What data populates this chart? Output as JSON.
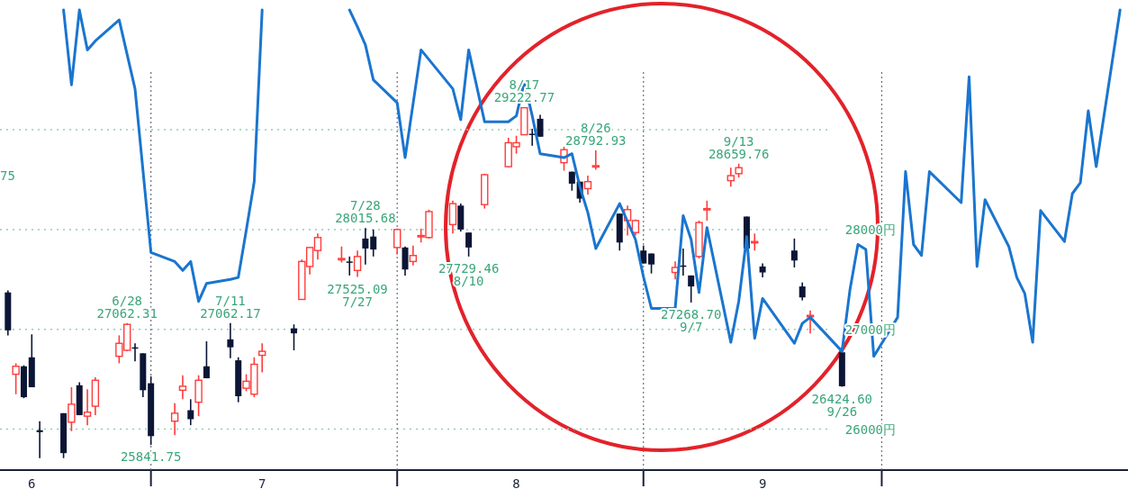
{
  "chart_data": {
    "type": "candlestick",
    "grid": true,
    "xlim": [
      "--06-12",
      "--11-01"
    ],
    "ylim": [
      25590,
      30300
    ],
    "yticks": [
      {
        "value": 26000,
        "label": "26000円"
      },
      {
        "value": 27000,
        "label": "27000円"
      },
      {
        "value": 28000,
        "label": "28000円"
      },
      {
        "value": 29000,
        "label": null
      }
    ],
    "xticks": [
      {
        "value": "--06-16",
        "label": "6"
      },
      {
        "value": "--07-01",
        "label": null
      },
      {
        "value": "--07-15",
        "label": "7"
      },
      {
        "value": "--08-01",
        "label": null
      },
      {
        "value": "--08-16",
        "label": "8"
      },
      {
        "value": "--09-01",
        "label": null
      },
      {
        "value": "--09-16",
        "label": "9"
      },
      {
        "value": "--10-01",
        "label": null
      }
    ],
    "x": [
      "--06-13",
      "--06-14",
      "--06-15",
      "--06-16",
      "--06-17",
      "--06-20",
      "--06-21",
      "--06-22",
      "--06-23",
      "--06-24",
      "--06-27",
      "--06-28",
      "--06-29",
      "--06-30",
      "--07-01",
      "--07-04",
      "--07-05",
      "--07-06",
      "--07-07",
      "--07-08",
      "--07-11",
      "--07-12",
      "--07-13",
      "--07-14",
      "--07-15",
      "--07-19",
      "--07-20",
      "--07-21",
      "--07-22",
      "--07-25",
      "--07-26",
      "--07-27",
      "--07-28",
      "--07-29",
      "--08-01",
      "--08-02",
      "--08-03",
      "--08-04",
      "--08-05",
      "--08-08",
      "--08-09",
      "--08-10",
      "--08-12",
      "--08-15",
      "--08-16",
      "--08-17",
      "--08-18",
      "--08-19",
      "--08-22",
      "--08-23",
      "--08-24",
      "--08-25",
      "--08-26",
      "--08-29",
      "--08-30",
      "--08-31",
      "--09-01",
      "--09-02",
      "--09-05",
      "--09-06",
      "--09-07",
      "--09-08",
      "--09-09",
      "--09-12",
      "--09-13",
      "--09-14",
      "--09-15",
      "--09-16",
      "--09-20",
      "--09-21",
      "--09-22",
      "--09-26"
    ],
    "ohlc": [
      [
        27370,
        27390,
        26940,
        26990
      ],
      [
        26550,
        26660,
        26350,
        26630
      ],
      [
        26630,
        26640,
        26310,
        26320
      ],
      [
        26720,
        26950,
        26420,
        26420
      ],
      [
        25990,
        26080,
        25710,
        25970
      ],
      [
        26160,
        26160,
        25710,
        25760
      ],
      [
        26070,
        26420,
        25980,
        26250
      ],
      [
        26440,
        26470,
        26140,
        26140
      ],
      [
        26130,
        26400,
        26040,
        26170
      ],
      [
        26230,
        26520,
        26140,
        26490
      ],
      [
        26730,
        26940,
        26660,
        26860
      ],
      [
        26790,
        27062.31,
        26780,
        27050
      ],
      [
        26820,
        26860,
        26680,
        26810
      ],
      [
        26760,
        26760,
        26320,
        26390
      ],
      [
        26460,
        26530,
        25841.75,
        25930
      ],
      [
        26080,
        26260,
        25940,
        26160
      ],
      [
        26390,
        26540,
        26300,
        26430
      ],
      [
        26190,
        26300,
        26040,
        26100
      ],
      [
        26270,
        26540,
        26130,
        26490
      ],
      [
        26630,
        26880,
        26510,
        26510
      ],
      [
        26900,
        27062.17,
        26710,
        26820
      ],
      [
        26690,
        26720,
        26270,
        26330
      ],
      [
        26410,
        26550,
        26380,
        26480
      ],
      [
        26350,
        26720,
        26320,
        26650
      ],
      [
        26740,
        26860,
        26570,
        26780
      ],
      [
        27010,
        27050,
        26790,
        26960
      ],
      [
        27300,
        27700,
        27300,
        27680
      ],
      [
        27630,
        27820,
        27550,
        27820
      ],
      [
        27790,
        27960,
        27700,
        27920
      ],
      [
        27700,
        27830,
        27670,
        27710
      ],
      [
        27680,
        27730,
        27540,
        27670
      ],
      [
        27590,
        27790,
        27525.09,
        27730
      ],
      [
        27910,
        28015.68,
        27650,
        27810
      ],
      [
        27930,
        28000,
        27730,
        27800
      ],
      [
        27820,
        28010,
        27750,
        28000
      ],
      [
        27820,
        27830,
        27540,
        27600
      ],
      [
        27680,
        27840,
        27640,
        27740
      ],
      [
        27930,
        28010,
        27870,
        27940
      ],
      [
        27920,
        28200,
        27910,
        28180
      ],
      [
        28050,
        28290,
        27960,
        28260
      ],
      [
        28240,
        28260,
        27980,
        28000
      ],
      [
        27970,
        27970,
        27729.46,
        27820
      ],
      [
        28250,
        28560,
        28210,
        28550
      ],
      [
        28630,
        28920,
        28620,
        28870
      ],
      [
        28830,
        28940,
        28760,
        28870
      ],
      [
        28950,
        29222.77,
        28950,
        29220
      ],
      [
        28960,
        29010,
        28840,
        28950
      ],
      [
        29110,
        29150,
        28930,
        28930
      ],
      [
        28670,
        28830,
        28590,
        28800
      ],
      [
        28580,
        28580,
        28390,
        28460
      ],
      [
        28480,
        28480,
        28270,
        28310
      ],
      [
        28410,
        28540,
        28350,
        28480
      ],
      [
        28630,
        28792.93,
        28600,
        28640
      ],
      [
        28160,
        28160,
        27790,
        27870
      ],
      [
        28090,
        28240,
        27940,
        28200
      ],
      [
        27970,
        28100,
        27940,
        28090
      ],
      [
        27790,
        27840,
        27660,
        27660
      ],
      [
        27760,
        27760,
        27560,
        27650
      ],
      [
        27570,
        27680,
        27500,
        27620
      ],
      [
        27640,
        27810,
        27540,
        27630
      ],
      [
        27540,
        27540,
        27268.7,
        27430
      ],
      [
        27730,
        28090,
        27710,
        28070
      ],
      [
        28200,
        28290,
        28090,
        28210
      ],
      [
        28490,
        28620,
        28430,
        28540
      ],
      [
        28560,
        28659.76,
        28520,
        28620
      ],
      [
        28130,
        28130,
        27810,
        27810
      ],
      [
        27870,
        27960,
        27790,
        27880
      ],
      [
        27630,
        27660,
        27520,
        27570
      ],
      [
        27790,
        27910,
        27620,
        27690
      ],
      [
        27430,
        27470,
        27290,
        27320
      ],
      [
        27130,
        27190,
        26960,
        27140
      ],
      [
        26770,
        26770,
        26424.6,
        26430
      ]
    ],
    "series": [
      {
        "type": "line",
        "color": "#1a75cf",
        "x": [
          "--06-20",
          "--06-21",
          "--06-22",
          "--06-23",
          "--06-24",
          "--06-27",
          "--06-29",
          "--07-01",
          "--07-04",
          "--07-05",
          "--07-06",
          "--07-07",
          "--07-08",
          "--07-11",
          "--07-12",
          "--07-13",
          "--07-14",
          "--07-15",
          "--07-21",
          "--07-26",
          "--07-27",
          "--07-28",
          "--07-29",
          "--08-01",
          "--08-02",
          "--08-04",
          "--08-08",
          "--08-09",
          "--08-10",
          "--08-12",
          "--08-15",
          "--08-16",
          "--08-17",
          "--08-18",
          "--08-19",
          "--08-22",
          "--08-23",
          "--08-24",
          "--08-25",
          "--08-26",
          "--08-29",
          "--08-30",
          "--08-31",
          "--09-01",
          "--09-02",
          "--09-05",
          "--09-06",
          "--09-07",
          "--09-08",
          "--09-09",
          "--09-12",
          "--09-13",
          "--09-14",
          "--09-15",
          "--09-16",
          "--09-20",
          "--09-21",
          "--09-22",
          "--09-26",
          "--09-27",
          "--09-28",
          "--09-29",
          "--09-30",
          "--10-03",
          "--10-04",
          "--10-05",
          "--10-06",
          "--10-07",
          "--10-11",
          "--10-12",
          "--10-13",
          "--10-14",
          "--10-17",
          "--10-18",
          "--10-19",
          "--10-20",
          "--10-21",
          "--10-24",
          "--10-25",
          "--10-26",
          "--10-27",
          "--10-28",
          "--10-31"
        ],
        "values": [
          30200,
          29450,
          30200,
          29800,
          29890,
          30100,
          29410,
          27770,
          27680,
          27590,
          27680,
          27280,
          27460,
          27500,
          27520,
          27990,
          28480,
          30200,
          null,
          30200,
          30030,
          29850,
          29500,
          29270,
          28720,
          29800,
          29410,
          29100,
          29800,
          29080,
          29080,
          29140,
          29480,
          29140,
          28760,
          28720,
          28760,
          28430,
          28170,
          27810,
          28260,
          28080,
          27900,
          27530,
          27210,
          27210,
          28140,
          27900,
          27370,
          28020,
          26870,
          27280,
          27930,
          26910,
          27310,
          26860,
          27060,
          27120,
          26780,
          27400,
          27850,
          27800,
          26730,
          27120,
          28580,
          27850,
          27740,
          28580,
          28270,
          29530,
          27630,
          28300,
          27830,
          27520,
          27360,
          26870,
          28190,
          27880,
          28360,
          28470,
          29190,
          28630,
          30200
        ]
      }
    ],
    "annotations": [
      {
        "text": "6/28\n27062.31",
        "x": "--06-28",
        "y": 27062.31
      },
      {
        "text": "25841.75",
        "x": "--07-01",
        "y": 25841.75
      },
      {
        "text": "7/11\n27062.17",
        "x": "--07-11",
        "y": 27062.17
      },
      {
        "text": "27525.09\n7/27",
        "x": "--07-27",
        "y": 27525.09
      },
      {
        "text": "7/28\n28015.68",
        "x": "--07-28",
        "y": 28015.68
      },
      {
        "text": "27729.46\n8/10",
        "x": "--08-10",
        "y": 27729.46
      },
      {
        "text": "8/17\n29222.77",
        "x": "--08-17",
        "y": 29222.77
      },
      {
        "text": "8/26\n28792.93",
        "x": "--08-26",
        "y": 28792.93
      },
      {
        "text": "27268.70\n9/7",
        "x": "--09-07",
        "y": 27268.7
      },
      {
        "text": "9/13\n28659.76",
        "x": "--09-13",
        "y": 28659.76
      },
      {
        "text": "26424.60\n9/26",
        "x": "--09-26",
        "y": 26424.6
      },
      "75"
    ]
  }
}
